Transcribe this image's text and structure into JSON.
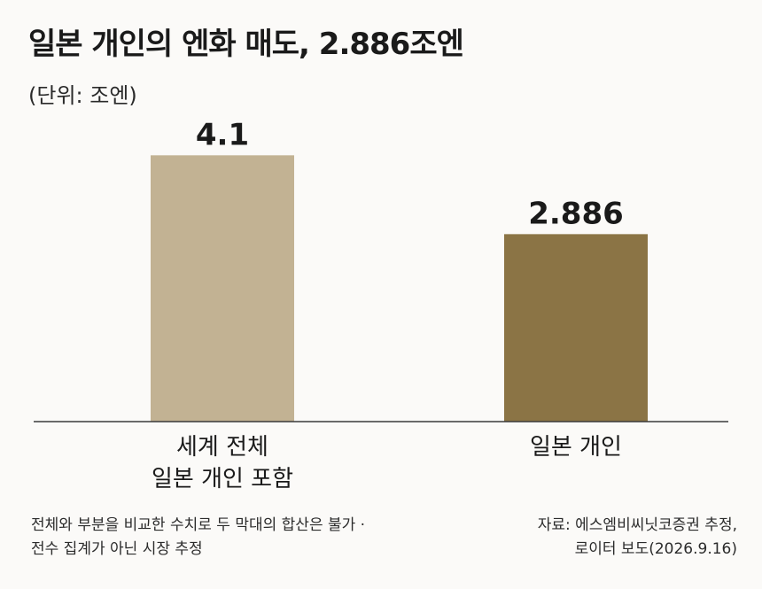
{
  "title": "일본 개인의 엔화 매도, 2.886조엔",
  "unit_label": "(단위: 조엔)",
  "chart_data": {
    "type": "bar",
    "categories": [
      [
        "세계 전체",
        "일본 개인 포함"
      ],
      [
        "일본 개인"
      ]
    ],
    "values": [
      4.1,
      2.886
    ],
    "value_labels": [
      "4.1",
      "2.886"
    ],
    "colors": [
      "#c2b293",
      "#8b7445"
    ],
    "ylim": [
      0,
      4.5
    ],
    "grid": false,
    "legend": "none"
  },
  "notes": {
    "left": [
      "전체와 부분을 비교한 수치로 두 막대의 합산은 불가 ·",
      "전수 집계가 아닌 시장 추정"
    ],
    "right": [
      "자료: 에스엠비씨닛코증권 추정,",
      "로이터 보도(2026.9.16)"
    ]
  },
  "colors": {
    "background": "#fbfaf8",
    "axis": "#3a3a3a",
    "text": "#1a1a1a"
  }
}
